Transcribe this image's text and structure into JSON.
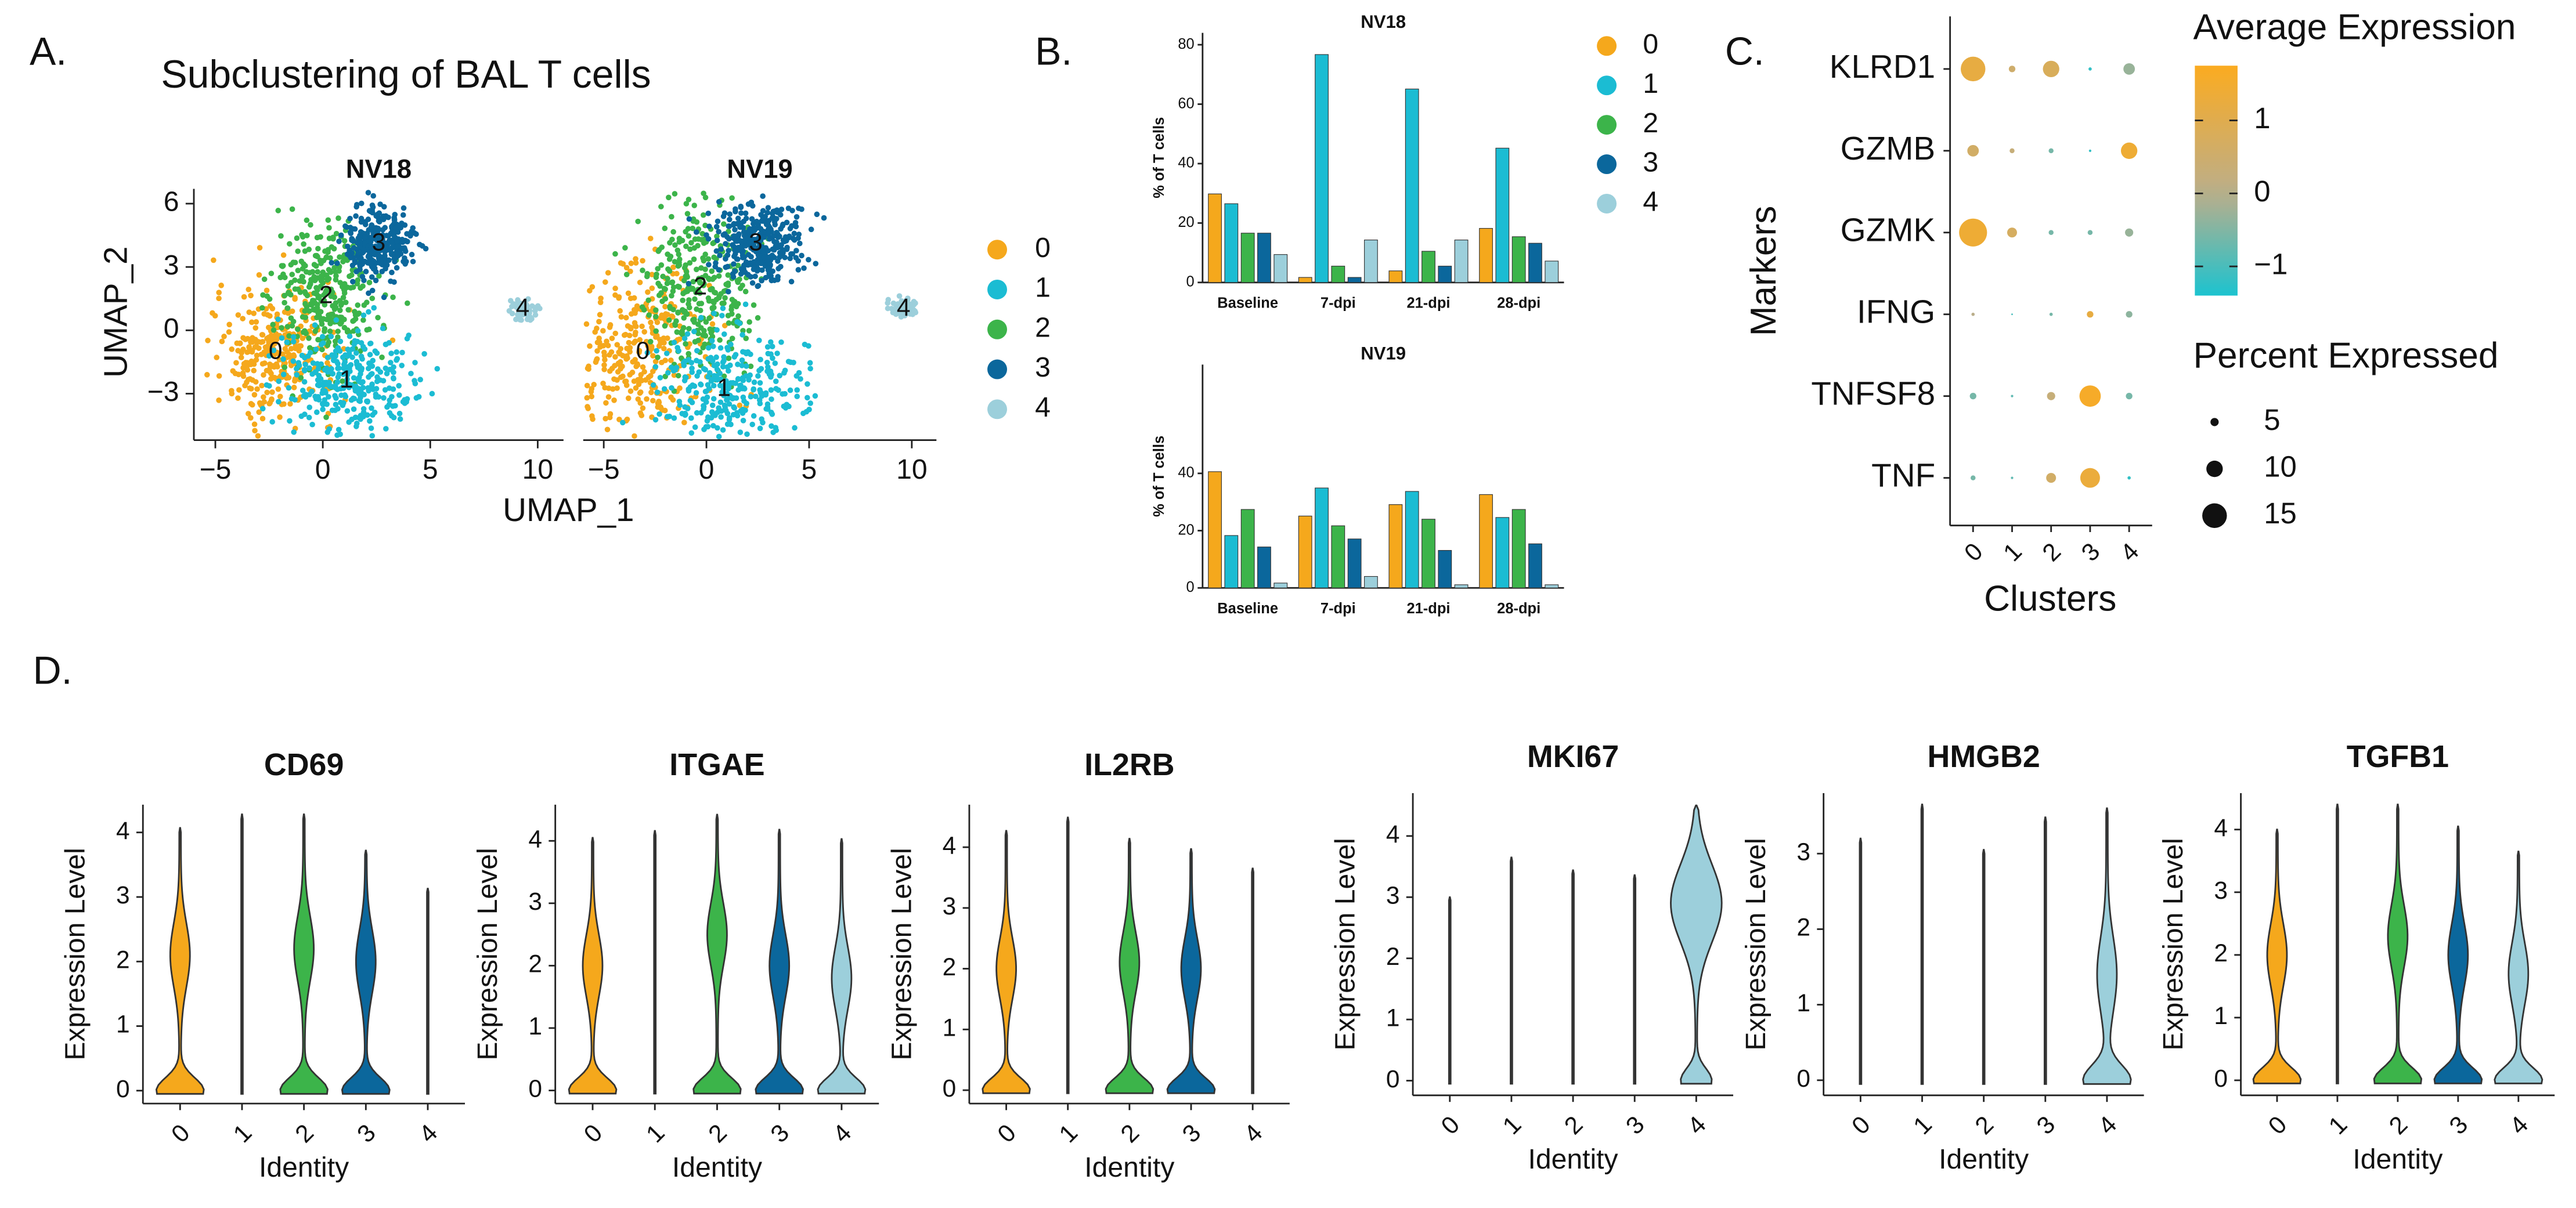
{
  "chart_data": [
    {
      "type": "scatter",
      "panel_label": "A.",
      "title": "Subclustering of BAL T cells",
      "xlabel": "UMAP_1",
      "ylabel": "UMAP_2",
      "xlim": [
        -6,
        11.2
      ],
      "ylim": [
        -5.2,
        6.7
      ],
      "xticks": [
        {
          "value": -5,
          "label": "−5"
        },
        0,
        5,
        10
      ],
      "yticks": [
        6,
        3,
        0,
        {
          "value": -3,
          "label": "−3"
        }
      ],
      "series": [
        {
          "name": "0",
          "color": "#f5a81c"
        },
        {
          "name": "1",
          "color": "#1bbcd3"
        },
        {
          "name": "2",
          "color": "#3cb44a"
        },
        {
          "name": "3",
          "color": "#0b679c"
        },
        {
          "name": "4",
          "color": "#9ccfdb"
        }
      ],
      "facets": [
        {
          "title": "NV18",
          "cluster_x": [
            -2.2,
            1.1,
            0.15,
            2.6,
            9.3
          ],
          "cluster_y": [
            -1.05,
            -2.4,
            1.6,
            4.1,
            1.0
          ]
        },
        {
          "title": "NV19",
          "cluster_x": [
            -3.1,
            0.85,
            -0.3,
            2.4,
            9.6
          ],
          "cluster_y": [
            -1.05,
            -2.8,
            2.0,
            4.1,
            1.0
          ]
        }
      ]
    },
    {
      "type": "bar",
      "panel_label": "B.",
      "ylabel": "% of T cells",
      "categories": [
        "Baseline",
        "7-dpi",
        "21-dpi",
        "28-dpi"
      ],
      "series": [
        {
          "name": "0",
          "color": "#f5a81c"
        },
        {
          "name": "1",
          "color": "#1bbcd3"
        },
        {
          "name": "2",
          "color": "#3cb44a"
        },
        {
          "name": "3",
          "color": "#0b679c"
        },
        {
          "name": "4",
          "color": "#9ccfdb"
        }
      ],
      "facets": [
        {
          "title": "NV18",
          "ylim": [
            0,
            84
          ],
          "yticks": [
            0,
            20,
            40,
            60,
            80
          ],
          "series": [
            {
              "values": [
                29.8,
                1.7,
                3.9,
                18.2
              ]
            },
            {
              "values": [
                26.5,
                76.7,
                65.1,
                45.2
              ]
            },
            {
              "values": [
                16.6,
                5.5,
                10.5,
                15.4
              ]
            },
            {
              "values": [
                16.6,
                1.7,
                5.5,
                13.2
              ]
            },
            {
              "values": [
                9.4,
                14.3,
                14.3,
                7.2
              ]
            }
          ]
        },
        {
          "title": "NV19",
          "ylim": [
            0,
            78
          ],
          "yticks": [
            0,
            20,
            40
          ],
          "series": [
            {
              "values": [
                40.6,
                25.1,
                29.1,
                32.6
              ]
            },
            {
              "values": [
                18.3,
                34.9,
                33.7,
                24.6
              ]
            },
            {
              "values": [
                27.4,
                21.7,
                24,
                27.4
              ]
            },
            {
              "values": [
                14.3,
                17.1,
                13.1,
                15.4
              ]
            },
            {
              "values": [
                1.7,
                4,
                1.1,
                1.1
              ]
            }
          ]
        }
      ]
    },
    {
      "type": "dot",
      "panel_label": "C.",
      "xlabel": "Clusters",
      "ylabel": "Markers",
      "categories": [
        "0",
        "1",
        "2",
        "3",
        "4"
      ],
      "markers": [
        "KLRD1",
        "GZMB",
        "GZMK",
        "IFNG",
        "TNFSF8",
        "TNF"
      ],
      "color_title": "Average Expression",
      "clim": [
        -1.4,
        1.75
      ],
      "cticks": [
        1,
        0,
        {
          "value": -1,
          "label": "−1"
        }
      ],
      "color_scale": [
        "#1cc3cf",
        "#bcae8a",
        "#fbab20"
      ],
      "size_title": "Percent Expressed",
      "size_ticks": [
        5,
        10,
        15
      ],
      "avg_expression": [
        [
          1.2,
          0.5,
          0.8,
          -1.2,
          -0.3
        ],
        [
          0.6,
          0.3,
          -0.6,
          -1.2,
          1.4
        ],
        [
          1.4,
          0.7,
          -0.6,
          -0.6,
          -0.3
        ],
        [
          0,
          -1,
          -0.6,
          1.2,
          -0.4
        ],
        [
          -0.6,
          -0.8,
          0.3,
          1.6,
          -0.6
        ],
        [
          -0.6,
          -0.8,
          0.6,
          1.3,
          -1.2
        ]
      ],
      "pct_expressed": [
        [
          15,
          4,
          10,
          2,
          7
        ],
        [
          7,
          3,
          3,
          1.5,
          10
        ],
        [
          17,
          6,
          3,
          3,
          5
        ],
        [
          2,
          1,
          2,
          4,
          4
        ],
        [
          4,
          1.5,
          5,
          13,
          4
        ],
        [
          3,
          1.5,
          6,
          12,
          2
        ]
      ]
    },
    {
      "type": "violin",
      "panel_label": "D.",
      "xlabel": "Identity",
      "ylabel": "Expression Level",
      "categories": [
        "0",
        "1",
        "2",
        "3",
        "4"
      ],
      "colors": [
        "#f5a81c",
        "#1bbcd3",
        "#3cb44a",
        "#0b679c",
        "#9ccfdb"
      ],
      "facets": [
        {
          "title": "CD69",
          "ylim": [
            -0.2,
            4.43
          ],
          "yticks": [
            0,
            1,
            2,
            3,
            4
          ],
          "max": [
            4.07,
            4.28,
            4.28,
            3.72,
            3.13
          ],
          "mode": [
            2.1,
            null,
            2.2,
            2.0,
            null
          ]
        },
        {
          "title": "ITGAE",
          "ylim": [
            -0.21,
            4.58
          ],
          "yticks": [
            0,
            1,
            2,
            3,
            4
          ],
          "max": [
            4.05,
            4.16,
            4.42,
            4.18,
            4.03
          ],
          "mode": [
            2.0,
            null,
            2.5,
            2.0,
            1.8
          ]
        },
        {
          "title": "IL2RB",
          "ylim": [
            -0.22,
            4.7
          ],
          "yticks": [
            0,
            1,
            2,
            3,
            4
          ],
          "max": [
            4.27,
            4.49,
            4.14,
            3.97,
            3.65
          ],
          "mode": [
            2.0,
            null,
            2.1,
            2.0,
            null
          ]
        },
        {
          "title": "MKI67",
          "ylim": [
            -0.24,
            4.7
          ],
          "yticks": [
            0,
            1,
            2,
            3,
            4
          ],
          "max": [
            3.0,
            3.65,
            3.44,
            3.36,
            4.5
          ],
          "mode": [
            null,
            null,
            null,
            null,
            2.9
          ]
        },
        {
          "title": "HMGB2",
          "ylim": [
            -0.2,
            3.8
          ],
          "yticks": [
            0,
            1,
            2,
            3
          ],
          "max": [
            3.2,
            3.65,
            3.05,
            3.48,
            3.6
          ],
          "mode": [
            null,
            null,
            null,
            null,
            1.4
          ]
        },
        {
          "title": "TGFB1",
          "ylim": [
            -0.24,
            4.58
          ],
          "yticks": [
            0,
            1,
            2,
            3,
            4
          ],
          "max": [
            4.0,
            4.4,
            4.4,
            4.05,
            3.65
          ],
          "mode": [
            2.0,
            null,
            2.3,
            2.0,
            1.7
          ]
        }
      ]
    }
  ]
}
